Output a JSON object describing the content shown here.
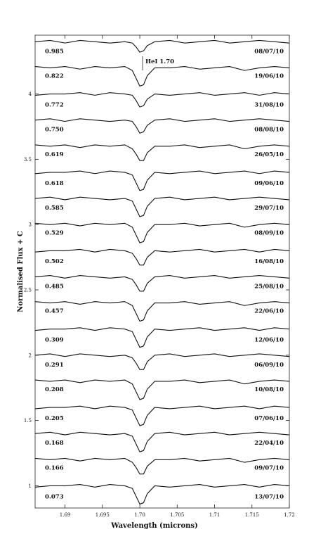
{
  "chart_data": {
    "type": "line",
    "xlabel": "Wavelength (microns)",
    "ylabel": "Normalised Flux + C",
    "annotation": "HeI 1.70",
    "x": [
      1.686,
      1.688,
      1.69,
      1.692,
      1.694,
      1.696,
      1.698,
      1.699,
      1.6995,
      1.7,
      1.7005,
      1.701,
      1.702,
      1.704,
      1.706,
      1.708,
      1.71,
      1.712,
      1.714,
      1.716,
      1.718,
      1.72
    ],
    "xlim": [
      1.686,
      1.72
    ],
    "xticks": [
      1.69,
      1.695,
      {
        "value": 1.7,
        "label": "1.70"
      },
      1.705,
      1.71,
      1.715,
      1.72
    ],
    "ylim": [
      0.83,
      4.45
    ],
    "yticks": [
      1,
      1.5,
      2,
      2.5,
      3,
      3.5,
      4
    ],
    "series": [
      {
        "name": "08/07/10",
        "phase": "0.985",
        "color": "#111111",
        "values": [
          4.4,
          4.41,
          4.39,
          4.41,
          4.4,
          4.39,
          4.4,
          4.39,
          4.36,
          4.32,
          4.33,
          4.37,
          4.4,
          4.41,
          4.39,
          4.4,
          4.41,
          4.39,
          4.4,
          4.41,
          4.4,
          4.39
        ]
      },
      {
        "name": "19/06/10",
        "phase": "0.822",
        "color": "#111111",
        "values": [
          4.21,
          4.2,
          4.21,
          4.19,
          4.21,
          4.2,
          4.21,
          4.18,
          4.12,
          4.06,
          4.07,
          4.14,
          4.2,
          4.2,
          4.21,
          4.19,
          4.2,
          4.21,
          4.18,
          4.2,
          4.21,
          4.2
        ]
      },
      {
        "name": "31/08/10",
        "phase": "0.772",
        "color": "#111111",
        "values": [
          3.99,
          4.0,
          4.0,
          4.01,
          3.99,
          4.01,
          4.0,
          3.99,
          3.95,
          3.9,
          3.91,
          3.96,
          4.0,
          3.99,
          4.0,
          4.01,
          3.99,
          4.0,
          4.01,
          3.99,
          4.01,
          4.0
        ]
      },
      {
        "name": "08/08/10",
        "phase": "0.750",
        "color": "#111111",
        "values": [
          3.8,
          3.81,
          3.79,
          3.81,
          3.8,
          3.79,
          3.8,
          3.79,
          3.75,
          3.7,
          3.71,
          3.76,
          3.8,
          3.81,
          3.79,
          3.8,
          3.81,
          3.79,
          3.8,
          3.81,
          3.8,
          3.79
        ]
      },
      {
        "name": "26/05/10",
        "phase": "0.619",
        "color": "#111111",
        "values": [
          3.61,
          3.6,
          3.61,
          3.59,
          3.61,
          3.6,
          3.61,
          3.58,
          3.54,
          3.49,
          3.49,
          3.55,
          3.6,
          3.6,
          3.61,
          3.59,
          3.6,
          3.61,
          3.58,
          3.6,
          3.61,
          3.6
        ]
      },
      {
        "name": "09/06/10",
        "phase": "0.618",
        "color": "#111111",
        "values": [
          3.39,
          3.4,
          3.4,
          3.41,
          3.39,
          3.41,
          3.4,
          3.38,
          3.32,
          3.26,
          3.27,
          3.34,
          3.4,
          3.39,
          3.4,
          3.41,
          3.39,
          3.4,
          3.41,
          3.39,
          3.41,
          3.4
        ]
      },
      {
        "name": "29/07/10",
        "phase": "0.585",
        "color": "#111111",
        "values": [
          3.2,
          3.21,
          3.19,
          3.21,
          3.2,
          3.19,
          3.2,
          3.18,
          3.12,
          3.06,
          3.07,
          3.14,
          3.2,
          3.21,
          3.19,
          3.2,
          3.21,
          3.19,
          3.2,
          3.21,
          3.2,
          3.19
        ]
      },
      {
        "name": "08/09/10",
        "phase": "0.529",
        "color": "#111111",
        "values": [
          3.01,
          3.0,
          3.01,
          2.99,
          3.01,
          3.0,
          3.01,
          2.98,
          2.92,
          2.86,
          2.87,
          2.94,
          3.0,
          3.0,
          3.01,
          2.99,
          3.0,
          3.01,
          2.98,
          3.0,
          3.01,
          3.0
        ]
      },
      {
        "name": "16/08/10",
        "phase": "0.502",
        "color": "#111111",
        "values": [
          2.79,
          2.8,
          2.8,
          2.81,
          2.79,
          2.81,
          2.8,
          2.78,
          2.74,
          2.69,
          2.69,
          2.75,
          2.8,
          2.79,
          2.8,
          2.81,
          2.79,
          2.8,
          2.81,
          2.79,
          2.81,
          2.8
        ]
      },
      {
        "name": "25/08/10",
        "phase": "0.485",
        "color": "#111111",
        "values": [
          2.6,
          2.61,
          2.59,
          2.61,
          2.6,
          2.59,
          2.6,
          2.58,
          2.54,
          2.49,
          2.49,
          2.55,
          2.6,
          2.61,
          2.59,
          2.6,
          2.61,
          2.59,
          2.6,
          2.61,
          2.6,
          2.59
        ]
      },
      {
        "name": "22/06/10",
        "phase": "0.457",
        "color": "#111111",
        "values": [
          2.41,
          2.4,
          2.41,
          2.39,
          2.41,
          2.4,
          2.41,
          2.38,
          2.32,
          2.26,
          2.27,
          2.34,
          2.4,
          2.4,
          2.41,
          2.39,
          2.4,
          2.41,
          2.38,
          2.4,
          2.41,
          2.4
        ]
      },
      {
        "name": "12/06/10",
        "phase": "0.309",
        "color": "#111111",
        "values": [
          2.19,
          2.2,
          2.2,
          2.21,
          2.19,
          2.21,
          2.2,
          2.18,
          2.12,
          2.06,
          2.07,
          2.14,
          2.2,
          2.19,
          2.2,
          2.21,
          2.19,
          2.2,
          2.21,
          2.19,
          2.21,
          2.2
        ]
      },
      {
        "name": "06/09/10",
        "phase": "0.291",
        "color": "#111111",
        "values": [
          2.0,
          2.01,
          1.99,
          2.01,
          2.0,
          1.99,
          2.0,
          1.98,
          1.94,
          1.89,
          1.89,
          1.95,
          2.0,
          2.01,
          1.99,
          2.0,
          2.01,
          1.99,
          2.0,
          2.01,
          2.0,
          1.99
        ]
      },
      {
        "name": "10/08/10",
        "phase": "0.208",
        "color": "#111111",
        "values": [
          1.81,
          1.8,
          1.81,
          1.79,
          1.81,
          1.8,
          1.81,
          1.78,
          1.72,
          1.66,
          1.67,
          1.74,
          1.8,
          1.8,
          1.81,
          1.79,
          1.8,
          1.81,
          1.78,
          1.8,
          1.81,
          1.8
        ]
      },
      {
        "name": "07/06/10",
        "phase": "0.205",
        "color": "#111111",
        "values": [
          1.59,
          1.6,
          1.6,
          1.61,
          1.59,
          1.61,
          1.6,
          1.58,
          1.52,
          1.46,
          1.47,
          1.54,
          1.6,
          1.59,
          1.6,
          1.61,
          1.59,
          1.6,
          1.61,
          1.59,
          1.61,
          1.6
        ]
      },
      {
        "name": "22/04/10",
        "phase": "0.168",
        "color": "#111111",
        "values": [
          1.4,
          1.41,
          1.39,
          1.41,
          1.4,
          1.39,
          1.4,
          1.38,
          1.32,
          1.26,
          1.27,
          1.34,
          1.4,
          1.41,
          1.39,
          1.4,
          1.41,
          1.39,
          1.4,
          1.41,
          1.4,
          1.39
        ]
      },
      {
        "name": "09/07/10",
        "phase": "0.166",
        "color": "#111111",
        "values": [
          1.21,
          1.2,
          1.21,
          1.19,
          1.21,
          1.2,
          1.21,
          1.18,
          1.14,
          1.09,
          1.09,
          1.15,
          1.2,
          1.2,
          1.21,
          1.19,
          1.2,
          1.21,
          1.18,
          1.2,
          1.21,
          1.2
        ]
      },
      {
        "name": "13/07/10",
        "phase": "0.073",
        "color": "#111111",
        "values": [
          0.99,
          1.0,
          1.0,
          1.01,
          0.99,
          1.01,
          1.0,
          0.98,
          0.92,
          0.86,
          0.87,
          0.94,
          1.0,
          0.99,
          1.0,
          1.01,
          0.99,
          1.0,
          1.01,
          0.99,
          1.01,
          1.0
        ]
      }
    ]
  }
}
